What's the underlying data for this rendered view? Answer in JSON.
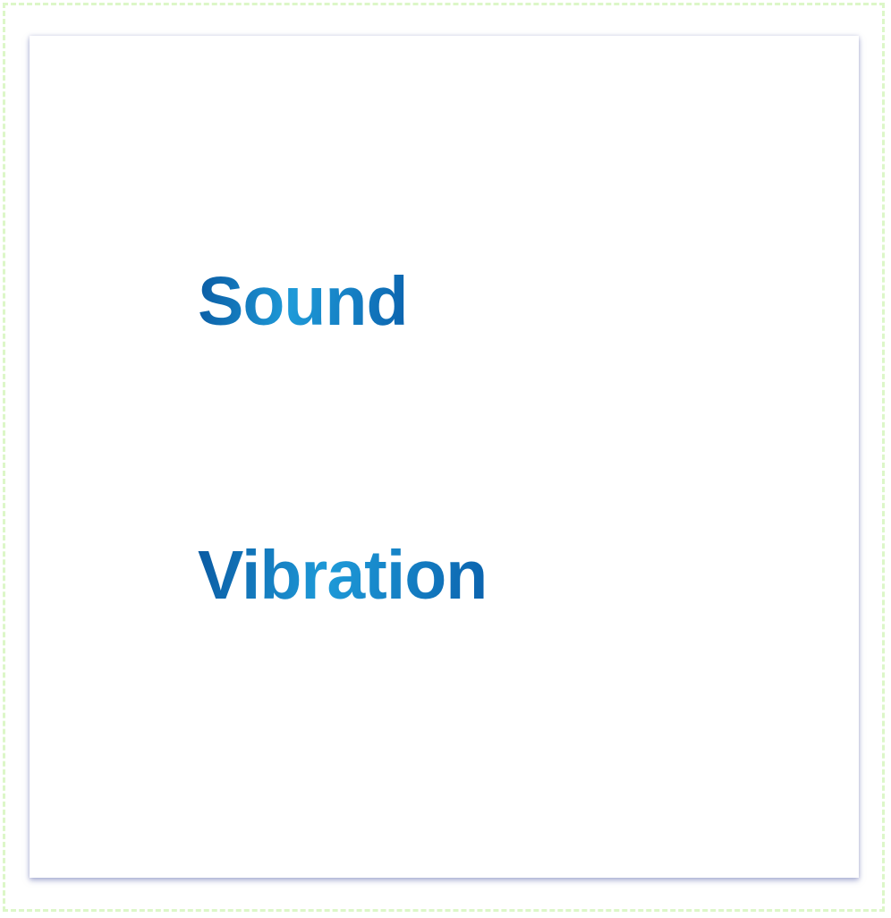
{
  "options": {
    "sound_label": "Sound",
    "vibration_label": "Vibration"
  },
  "colors": {
    "text_gradient_start": "#0a5aa2",
    "text_gradient_mid": "#1e9ad8",
    "text_gradient_end": "#0b62ad",
    "frame_border": "#dcf7c8",
    "card_background": "#ffffff"
  }
}
